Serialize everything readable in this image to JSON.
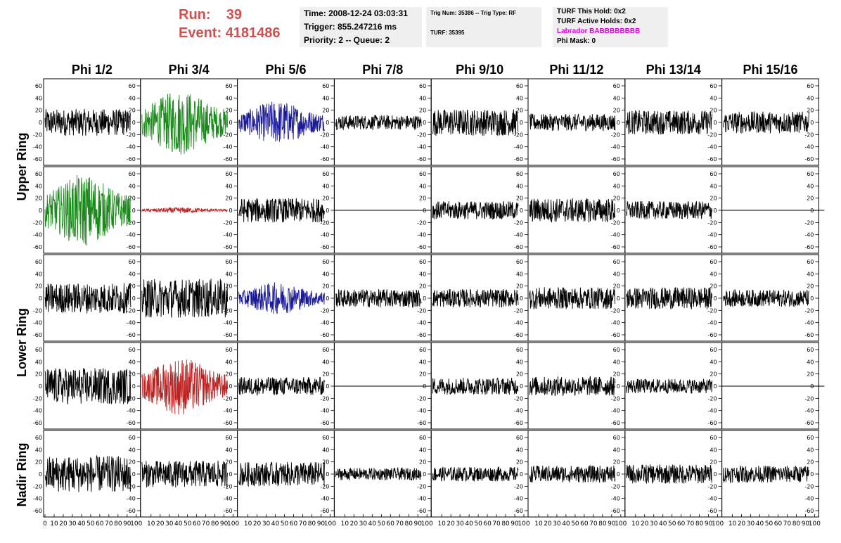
{
  "header": {
    "run_label": "Run:",
    "run_value": "39",
    "event_label": "Event:",
    "event_value": "4181486",
    "time": "Time: 2008-12-24 03:03:31",
    "trigger": "Trigger: 855.247216 ms",
    "priority": "Priority: 2 -- Queue: 2",
    "trig_num": "Trig Num: 35386 -- Trig Type: RF",
    "turf": "TURF: 35395",
    "turf_this_hold": "TURF This Hold: 0x2",
    "turf_active_holds": "TURF Active Holds: 0x2",
    "labrador": "Labrador BABBBBBBBB",
    "phi_mask": "Phi Mask: 0"
  },
  "colors": {
    "run_text": "#d05050",
    "labrador_text": "#e000e0",
    "trace_black": "#000000",
    "trace_green": "#1a8a1a",
    "trace_blue": "#1a1a9a",
    "trace_red": "#c02020"
  },
  "chart_data": {
    "type": "line",
    "columns": [
      "Phi 1/2",
      "Phi 3/4",
      "Phi 5/6",
      "Phi 7/8",
      "Phi 9/10",
      "Phi 11/12",
      "Phi 13/14",
      "Phi 15/16"
    ],
    "rows": [
      "Upper Ring",
      "Lower Ring",
      "Nadir Ring"
    ],
    "ylim": [
      -75,
      75
    ],
    "yticks": [
      -60,
      -40,
      -20,
      0,
      20,
      40,
      60
    ],
    "xlim": [
      0,
      100
    ],
    "xticks": [
      0,
      10,
      20,
      30,
      40,
      50,
      60,
      70,
      80,
      90,
      100
    ],
    "grid": false,
    "panel_rows": [
      {
        "ring": "Upper Ring",
        "panels": [
          {
            "color": "black",
            "amplitude": 22
          },
          {
            "color": "green",
            "amplitude": 45
          },
          {
            "color": "blue",
            "amplitude": 30
          },
          {
            "color": "black",
            "amplitude": 12
          },
          {
            "color": "black",
            "amplitude": 22
          },
          {
            "color": "black",
            "amplitude": 14
          },
          {
            "color": "black",
            "amplitude": 20
          },
          {
            "color": "black",
            "amplitude": 18
          }
        ]
      },
      {
        "ring": "Upper Ring",
        "panels": [
          {
            "color": "green",
            "amplitude": 50
          },
          {
            "color": "red",
            "amplitude": 4
          },
          {
            "color": "black",
            "amplitude": 20
          },
          {
            "color": "black",
            "amplitude": 0
          },
          {
            "color": "black",
            "amplitude": 15
          },
          {
            "color": "black",
            "amplitude": 20
          },
          {
            "color": "black",
            "amplitude": 15
          },
          {
            "color": "black",
            "amplitude": 0
          }
        ]
      },
      {
        "ring": "Lower Ring",
        "panels": [
          {
            "color": "black",
            "amplitude": 25
          },
          {
            "color": "black",
            "amplitude": 32
          },
          {
            "color": "blue",
            "amplitude": 22
          },
          {
            "color": "black",
            "amplitude": 15
          },
          {
            "color": "black",
            "amplitude": 15
          },
          {
            "color": "black",
            "amplitude": 18
          },
          {
            "color": "black",
            "amplitude": 18
          },
          {
            "color": "black",
            "amplitude": 14
          }
        ]
      },
      {
        "ring": "Lower Ring",
        "panels": [
          {
            "color": "black",
            "amplitude": 30
          },
          {
            "color": "red",
            "amplitude": 40
          },
          {
            "color": "black",
            "amplitude": 15
          },
          {
            "color": "black",
            "amplitude": 0
          },
          {
            "color": "black",
            "amplitude": 14
          },
          {
            "color": "black",
            "amplitude": 16
          },
          {
            "color": "black",
            "amplitude": 12
          },
          {
            "color": "black",
            "amplitude": 0
          }
        ]
      },
      {
        "ring": "Nadir Ring",
        "panels": [
          {
            "color": "black",
            "amplitude": 30
          },
          {
            "color": "black",
            "amplitude": 22
          },
          {
            "color": "black",
            "amplitude": 20
          },
          {
            "color": "black",
            "amplitude": 10
          },
          {
            "color": "black",
            "amplitude": 12
          },
          {
            "color": "black",
            "amplitude": 14
          },
          {
            "color": "black",
            "amplitude": 16
          },
          {
            "color": "black",
            "amplitude": 14
          }
        ]
      }
    ]
  }
}
